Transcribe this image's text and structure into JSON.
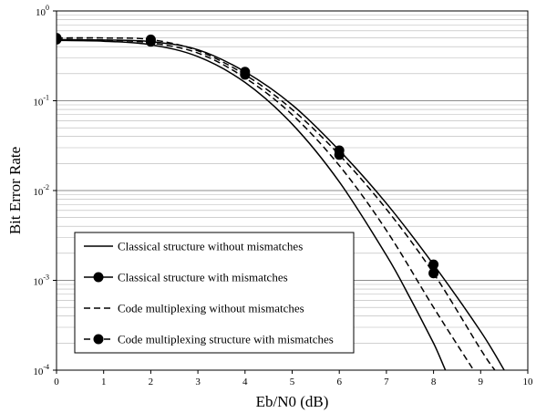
{
  "chart_data": {
    "type": "line",
    "xlabel": "Eb/N0 (dB)",
    "ylabel": "Bit Error Rate",
    "xlim": [
      0,
      10
    ],
    "ylim": [
      0.0001,
      1
    ],
    "yscale": "log",
    "grid": true,
    "legend_position": "bottom-left",
    "x_ticks": [
      "0",
      "1",
      "2",
      "3",
      "4",
      "5",
      "6",
      "7",
      "8",
      "9",
      "10"
    ],
    "y_ticks": [
      {
        "base": "10",
        "exp": "0",
        "value": 1
      },
      {
        "base": "10",
        "exp": "-1",
        "value": 0.1
      },
      {
        "base": "10",
        "exp": "-2",
        "value": 0.01
      },
      {
        "base": "10",
        "exp": "-3",
        "value": 0.001
      },
      {
        "base": "10",
        "exp": "-4",
        "value": 0.0001
      }
    ],
    "series": [
      {
        "name": "Classical structure without mismatches",
        "style": "solid",
        "markers": false,
        "color": "#000000",
        "x": [
          0,
          1,
          2,
          3,
          4,
          5,
          6,
          7,
          7.5,
          8,
          8.5,
          8.9
        ],
        "y": [
          0.47,
          0.46,
          0.42,
          0.31,
          0.16,
          0.055,
          0.0125,
          0.0019,
          0.00064,
          0.0002,
          6e-05,
          0.0001
        ]
      },
      {
        "name": "Classical structure with mismatches",
        "style": "solid",
        "markers": true,
        "color": "#000000",
        "x": [
          0,
          1,
          2,
          3,
          4,
          5,
          6,
          7,
          8,
          9,
          9.5
        ],
        "y": [
          0.48,
          0.475,
          0.455,
          0.37,
          0.21,
          0.09,
          0.028,
          0.0072,
          0.0015,
          0.00027,
          0.0001
        ]
      },
      {
        "name": "Code multiplexing without mismatches",
        "style": "dashed",
        "markers": false,
        "color": "#000000",
        "x": [
          0,
          1,
          2,
          3,
          4,
          5,
          6,
          7,
          8,
          8.85
        ],
        "y": [
          0.48,
          0.475,
          0.44,
          0.34,
          0.18,
          0.07,
          0.019,
          0.0036,
          0.0005,
          0.0001
        ]
      },
      {
        "name": "Code multiplexing structure with mismatches",
        "style": "dashed",
        "markers": true,
        "color": "#000000",
        "x": [
          0,
          1,
          2,
          3,
          4,
          5,
          6,
          7,
          8,
          9,
          9.3
        ],
        "y": [
          0.5,
          0.5,
          0.48,
          0.36,
          0.195,
          0.08,
          0.025,
          0.0062,
          0.0012,
          0.00017,
          0.0001
        ]
      }
    ]
  }
}
